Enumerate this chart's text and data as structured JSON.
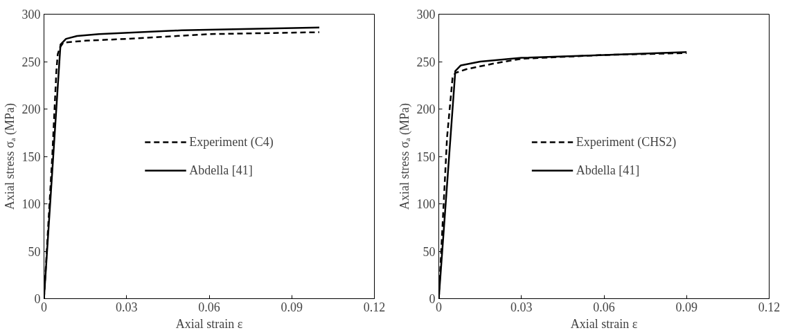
{
  "chart_data": [
    {
      "type": "line",
      "xlabel": "Axial strain ε",
      "ylabel": "Axial stress σₐ (MPa)",
      "xlim": [
        0,
        0.12
      ],
      "xticks": [
        0,
        0.03,
        0.06,
        0.09,
        0.12
      ],
      "ylim": [
        0,
        300
      ],
      "yticks": [
        0,
        50,
        100,
        150,
        200,
        250,
        300
      ],
      "grid": false,
      "legend": "center",
      "marker": "none",
      "series": [
        {
          "name": "Experiment (C4)",
          "color": "#000000",
          "line_style": "dashed",
          "x": [
            0,
            0.003,
            0.0045,
            0.005,
            0.0058,
            0.007,
            0.015,
            0.03,
            0.06,
            0.1
          ],
          "values": [
            0,
            150,
            240,
            258,
            265,
            270,
            272,
            274,
            279,
            281
          ]
        },
        {
          "name": "Abdella [41]",
          "color": "#000000",
          "line_style": "solid",
          "x": [
            0,
            0.006,
            0.008,
            0.012,
            0.02,
            0.05,
            0.1
          ],
          "values": [
            0,
            268,
            274,
            277,
            279,
            283,
            286
          ]
        }
      ]
    },
    {
      "type": "line",
      "xlabel": "Axial strain ε",
      "ylabel": "Axial stress σₐ (MPa)",
      "xlim": [
        0,
        0.12
      ],
      "xticks": [
        0,
        0.03,
        0.06,
        0.09,
        0.12
      ],
      "ylim": [
        0,
        300
      ],
      "yticks": [
        0,
        50,
        100,
        150,
        200,
        250,
        300
      ],
      "grid": false,
      "legend": "center",
      "marker": "none",
      "series": [
        {
          "name": "Experiment (CHS2)",
          "color": "#000000",
          "line_style": "dashed",
          "x": [
            0,
            0.003,
            0.005,
            0.006,
            0.01,
            0.02,
            0.03,
            0.06,
            0.09
          ],
          "values": [
            0,
            170,
            233,
            238,
            242,
            248,
            253,
            257,
            259
          ]
        },
        {
          "name": "Abdella [41]",
          "color": "#000000",
          "line_style": "solid",
          "x": [
            0,
            0.006,
            0.008,
            0.015,
            0.03,
            0.06,
            0.09
          ],
          "values": [
            0,
            240,
            246,
            250,
            254,
            257,
            260
          ]
        }
      ]
    }
  ]
}
